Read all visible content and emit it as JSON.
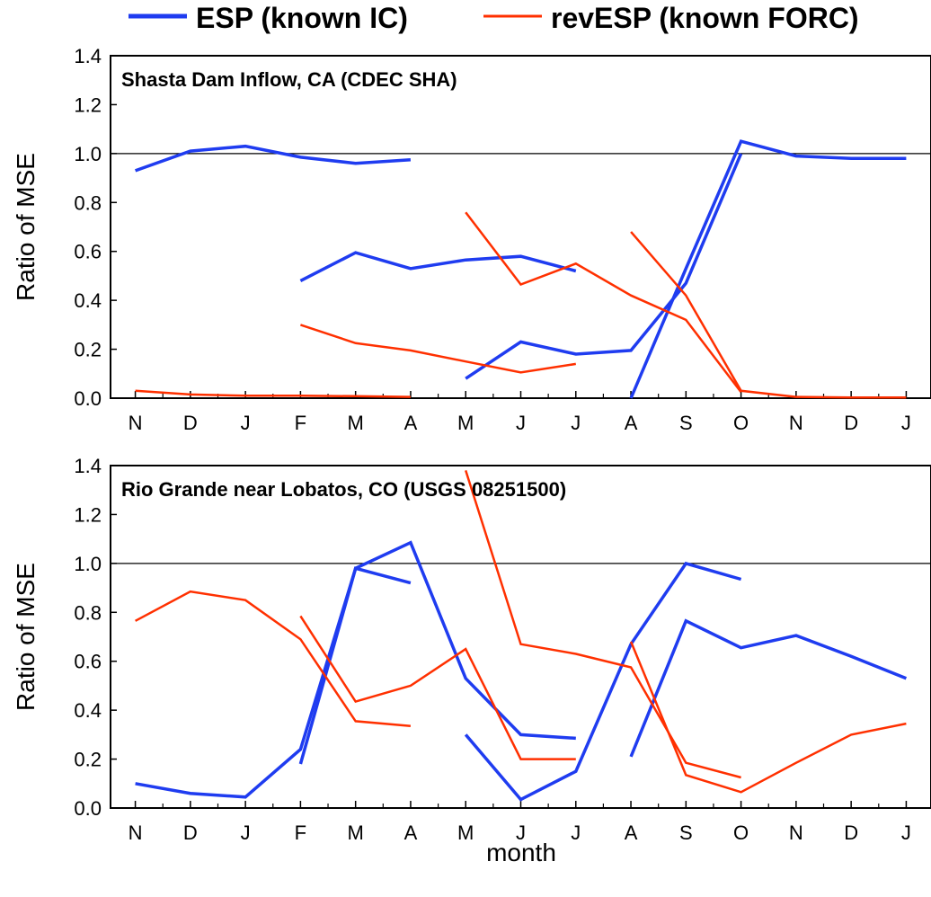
{
  "legend": [
    {
      "label": "ESP (known IC)",
      "color": "#1f3cf0"
    },
    {
      "label": "revESP (known FORC)",
      "color": "#ff3000"
    }
  ],
  "xlabel": "month",
  "chart_data": [
    {
      "type": "line",
      "title": "Shasta Dam Inflow, CA (CDEC SHA)",
      "ylabel": "Ratio of MSE",
      "x_ticks": [
        "N",
        "D",
        "J",
        "F",
        "M",
        "A",
        "M",
        "J",
        "J",
        "A",
        "S",
        "O",
        "N",
        "D",
        "J"
      ],
      "y_ticks": [
        "0.0",
        "0.2",
        "0.4",
        "0.6",
        "0.8",
        "1.0",
        "1.2",
        "1.4"
      ],
      "xlim": [
        -0.45,
        14.45
      ],
      "ylim": [
        0,
        1.4
      ],
      "reference_line": 1.0,
      "series": [
        {
          "kind": "ESP",
          "color": "#1f3cf0",
          "x": [
            0,
            1,
            2,
            3,
            4,
            5
          ],
          "y": [
            0.93,
            1.01,
            1.03,
            0.985,
            0.96,
            0.975
          ]
        },
        {
          "kind": "ESP",
          "color": "#1f3cf0",
          "x": [
            3,
            4,
            5,
            6,
            7,
            8
          ],
          "y": [
            0.48,
            0.595,
            0.53,
            0.565,
            0.58,
            0.52
          ]
        },
        {
          "kind": "ESP",
          "color": "#1f3cf0",
          "x": [
            6,
            7,
            8,
            9,
            10,
            11
          ],
          "y": [
            0.08,
            0.23,
            0.18,
            0.195,
            0.47,
            1.0
          ]
        },
        {
          "kind": "ESP",
          "color": "#1f3cf0",
          "x": [
            9,
            10,
            11,
            12,
            13,
            14
          ],
          "y": [
            0.0,
            0.53,
            1.05,
            0.99,
            0.98,
            0.98
          ]
        },
        {
          "kind": "revESP",
          "color": "#ff3000",
          "x": [
            0,
            1,
            2,
            3,
            4,
            5
          ],
          "y": [
            0.03,
            0.015,
            0.01,
            0.01,
            0.008,
            0.005
          ]
        },
        {
          "kind": "revESP",
          "color": "#ff3000",
          "x": [
            3,
            4,
            5,
            6,
            7,
            8
          ],
          "y": [
            0.3,
            0.225,
            0.195,
            0.15,
            0.105,
            0.14
          ]
        },
        {
          "kind": "revESP",
          "color": "#ff3000",
          "x": [
            6,
            7,
            8,
            9,
            10,
            11
          ],
          "y": [
            0.76,
            0.465,
            0.55,
            0.42,
            0.32,
            0.025
          ]
        },
        {
          "kind": "revESP",
          "color": "#ff3000",
          "x": [
            9,
            10,
            11,
            12,
            13,
            14
          ],
          "y": [
            0.68,
            0.42,
            0.03,
            0.005,
            0.003,
            0.003
          ]
        }
      ]
    },
    {
      "type": "line",
      "title": "Rio Grande near Lobatos, CO (USGS 08251500)",
      "ylabel": "Ratio of MSE",
      "x_ticks": [
        "N",
        "D",
        "J",
        "F",
        "M",
        "A",
        "M",
        "J",
        "J",
        "A",
        "S",
        "O",
        "N",
        "D",
        "J"
      ],
      "y_ticks": [
        "0.0",
        "0.2",
        "0.4",
        "0.6",
        "0.8",
        "1.0",
        "1.2",
        "1.4"
      ],
      "xlim": [
        -0.45,
        14.45
      ],
      "ylim": [
        0,
        1.4
      ],
      "reference_line": 1.0,
      "series": [
        {
          "kind": "ESP",
          "color": "#1f3cf0",
          "x": [
            0,
            1,
            2,
            3,
            4,
            5
          ],
          "y": [
            0.1,
            0.06,
            0.045,
            0.24,
            0.98,
            0.92
          ]
        },
        {
          "kind": "ESP",
          "color": "#1f3cf0",
          "x": [
            3,
            4,
            5,
            6,
            7,
            8
          ],
          "y": [
            0.18,
            0.98,
            1.085,
            0.53,
            0.3,
            0.285
          ]
        },
        {
          "kind": "ESP",
          "color": "#1f3cf0",
          "x": [
            6,
            7,
            8,
            9,
            10,
            11
          ],
          "y": [
            0.3,
            0.035,
            0.15,
            0.67,
            1.0,
            0.935
          ]
        },
        {
          "kind": "ESP",
          "color": "#1f3cf0",
          "x": [
            9,
            10,
            11,
            12,
            13,
            14
          ],
          "y": [
            0.21,
            0.765,
            0.655,
            0.705,
            0.62,
            0.53
          ]
        },
        {
          "kind": "revESP",
          "color": "#ff3000",
          "x": [
            0,
            1,
            2,
            3,
            4,
            5
          ],
          "y": [
            0.765,
            0.885,
            0.85,
            0.69,
            0.355,
            0.335
          ]
        },
        {
          "kind": "revESP",
          "color": "#ff3000",
          "x": [
            3,
            4,
            5,
            6,
            7,
            8
          ],
          "y": [
            0.785,
            0.435,
            0.5,
            0.65,
            0.2,
            0.2
          ]
        },
        {
          "kind": "revESP",
          "color": "#ff3000",
          "x": [
            6,
            7,
            8,
            9,
            10,
            11
          ],
          "y": [
            1.38,
            0.67,
            0.63,
            0.575,
            0.185,
            0.125
          ]
        },
        {
          "kind": "revESP",
          "color": "#ff3000",
          "x": [
            9,
            10,
            11,
            12,
            13,
            14
          ],
          "y": [
            0.68,
            0.135,
            0.065,
            0.185,
            0.3,
            0.345
          ]
        }
      ]
    }
  ]
}
